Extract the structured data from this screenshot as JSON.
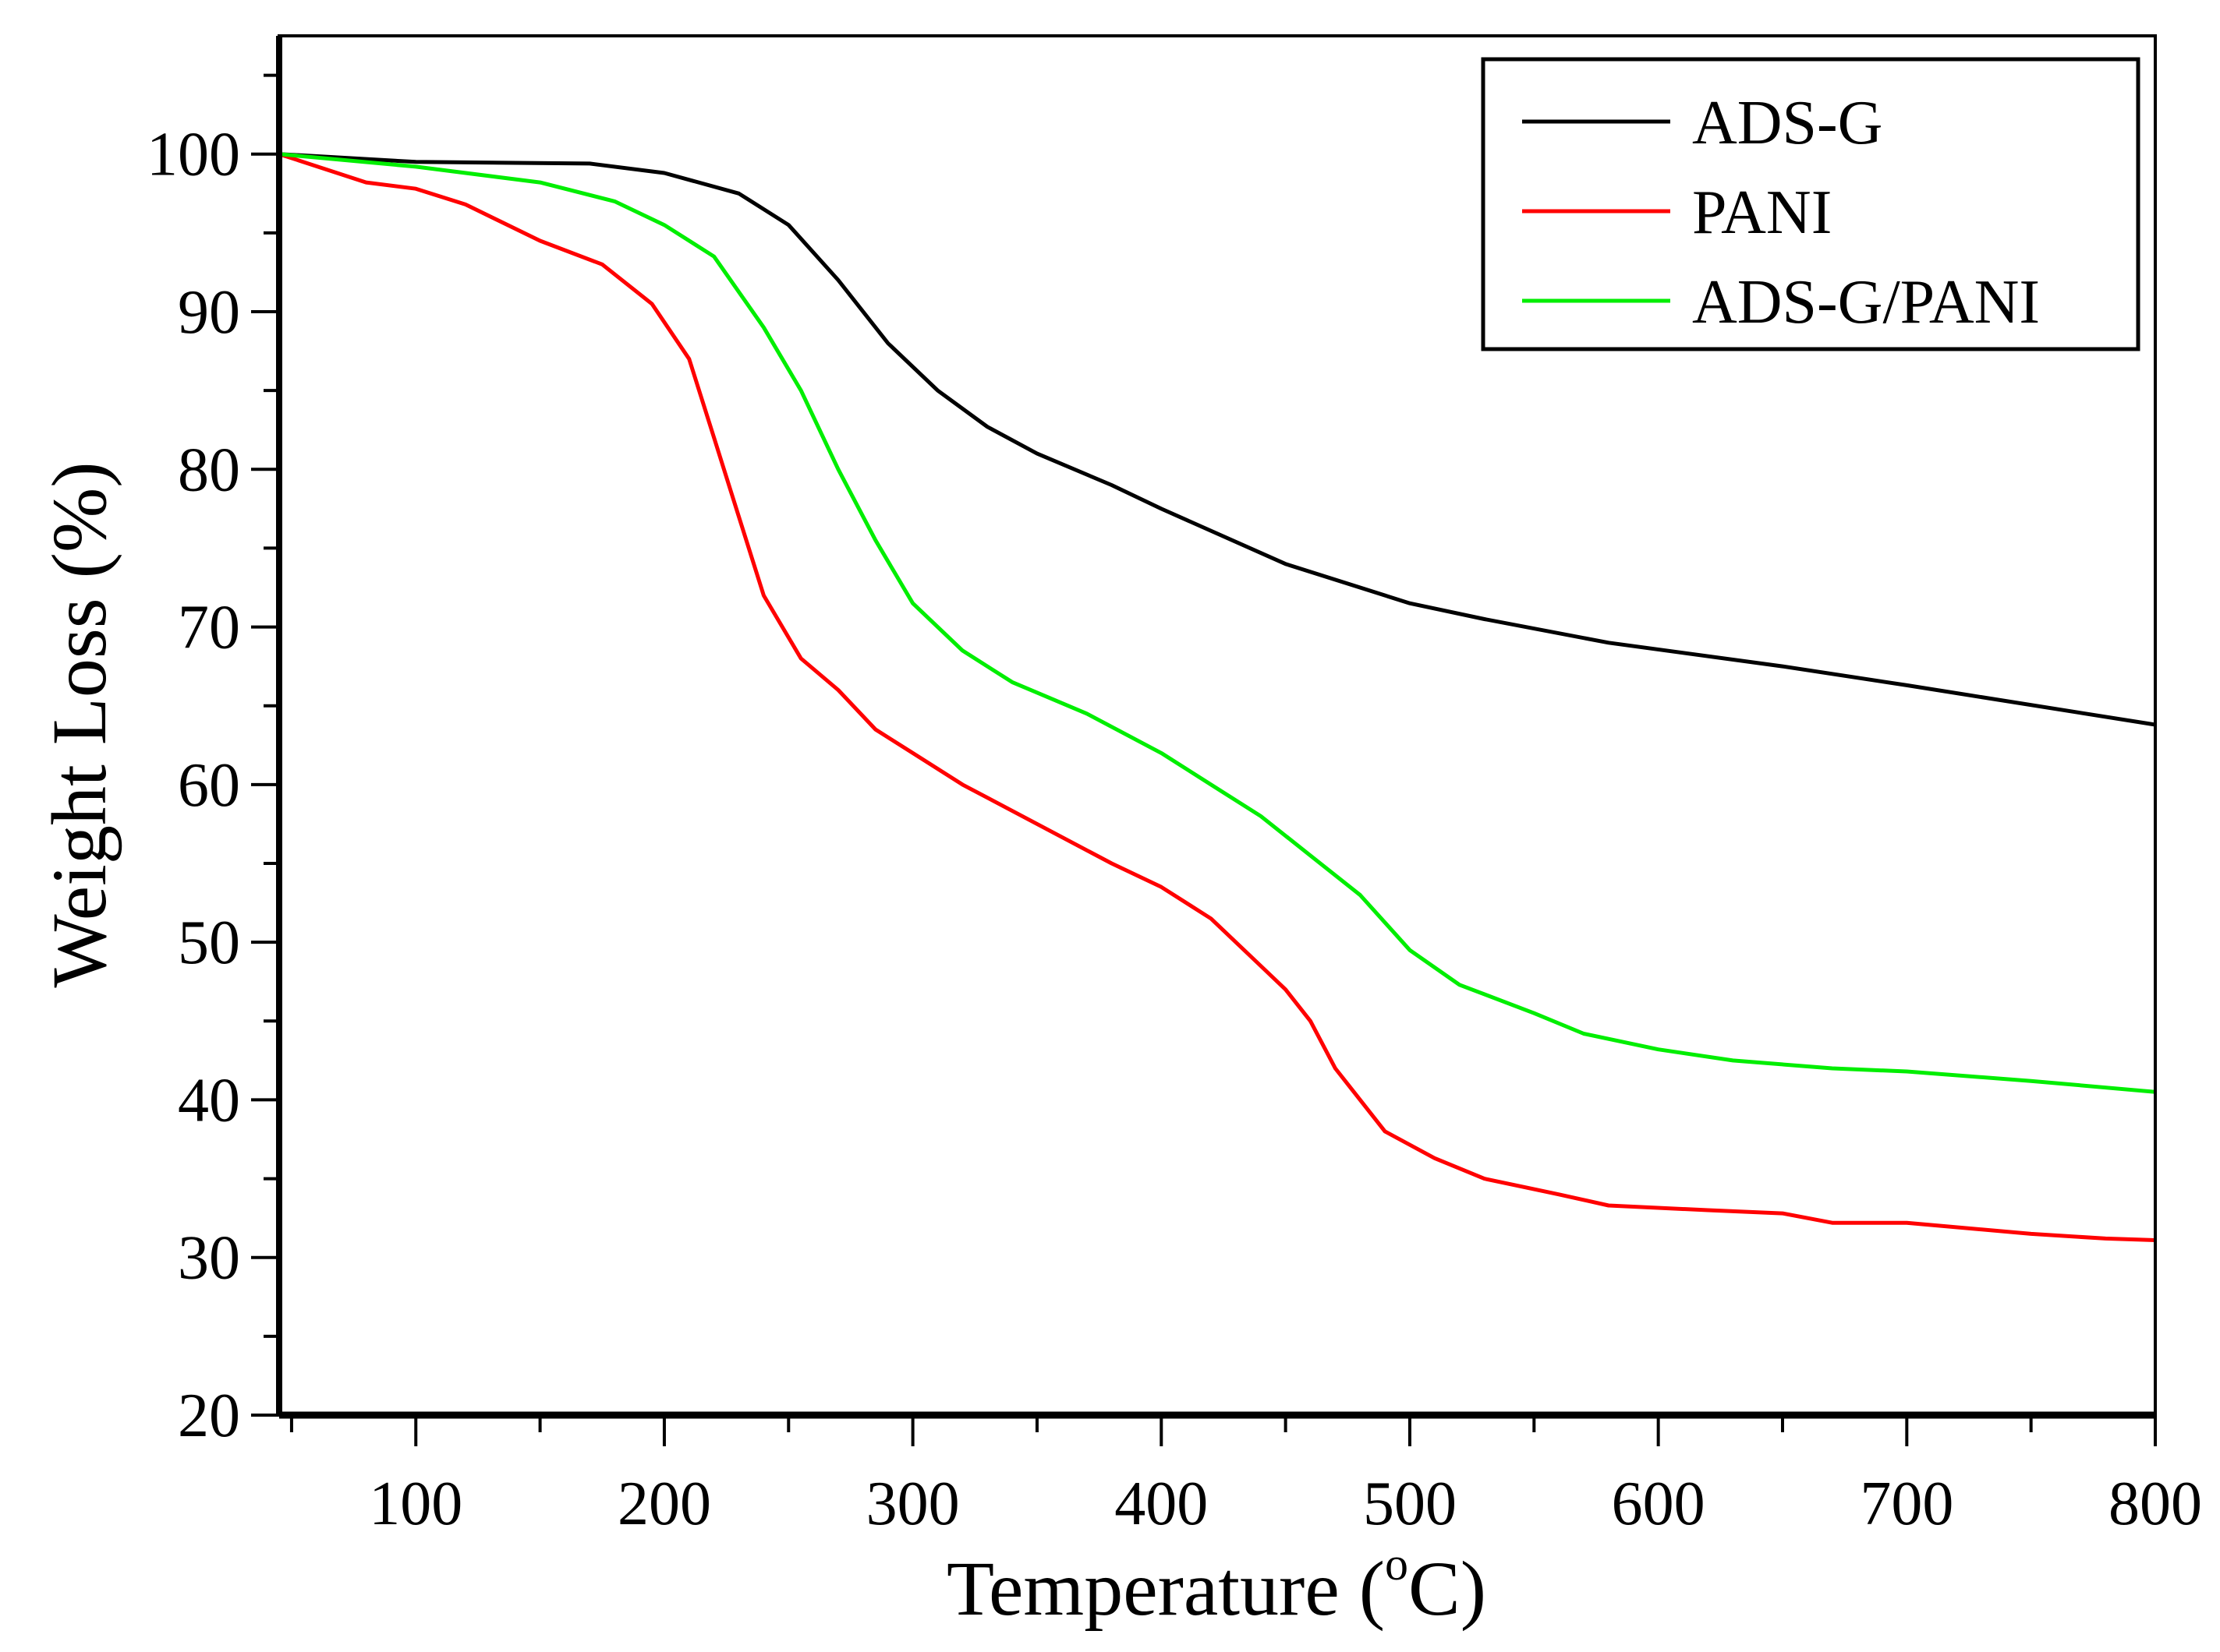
{
  "chart_data": {
    "type": "line",
    "title": "",
    "xlabel": "Temperature (",
    "xlabel_sup": "o",
    "xlabel_end": "C)",
    "ylabel": "Weight Loss (%)",
    "xlim": [
      45,
      800
    ],
    "ylim": [
      20,
      107.5
    ],
    "xticks": [
      100,
      200,
      300,
      400,
      500,
      600,
      700,
      800
    ],
    "yticks": [
      20,
      30,
      40,
      50,
      60,
      70,
      80,
      90,
      100
    ],
    "grid": false,
    "legend_position": "top-right",
    "series": [
      {
        "name": "ADS-G",
        "color": "#000000",
        "x": [
          45,
          100,
          170,
          200,
          230,
          250,
          270,
          290,
          310,
          330,
          350,
          380,
          400,
          450,
          500,
          530,
          580,
          650,
          700,
          800
        ],
        "y": [
          100,
          99.5,
          99.4,
          98.8,
          97.5,
          95.5,
          92,
          88,
          85,
          82.7,
          81,
          79,
          77.5,
          74,
          71.5,
          70.5,
          69,
          67.5,
          66.3,
          63.8
        ]
      },
      {
        "name": "PANI",
        "color": "#ff0000",
        "x": [
          45,
          80,
          100,
          120,
          150,
          175,
          195,
          210,
          220,
          230,
          240,
          255,
          270,
          285,
          300,
          320,
          350,
          380,
          400,
          420,
          440,
          450,
          460,
          470,
          490,
          510,
          530,
          560,
          580,
          620,
          650,
          670,
          700,
          750,
          780,
          800
        ],
        "y": [
          100,
          98.2,
          97.8,
          96.8,
          94.5,
          93,
          90.5,
          87,
          82,
          77,
          72,
          68,
          66,
          63.5,
          62,
          60,
          57.5,
          55,
          53.5,
          51.5,
          48.5,
          47,
          45,
          42,
          38,
          36.3,
          35,
          34,
          33.3,
          33,
          32.8,
          32.2,
          32.2,
          31.5,
          31.2,
          31.1
        ]
      },
      {
        "name": "ADS-G/PANI",
        "color": "#00ee00",
        "x": [
          45,
          100,
          150,
          180,
          200,
          220,
          240,
          255,
          270,
          285,
          300,
          320,
          340,
          370,
          400,
          420,
          440,
          460,
          480,
          500,
          520,
          550,
          570,
          600,
          630,
          670,
          700,
          750,
          800
        ],
        "y": [
          100,
          99.2,
          98.2,
          97,
          95.5,
          93.5,
          89,
          85,
          80,
          75.5,
          71.5,
          68.5,
          66.5,
          64.5,
          62,
          60,
          58,
          55.5,
          53,
          49.5,
          47.3,
          45.5,
          44.2,
          43.2,
          42.5,
          42,
          41.8,
          41.2,
          40.5
        ]
      }
    ]
  }
}
